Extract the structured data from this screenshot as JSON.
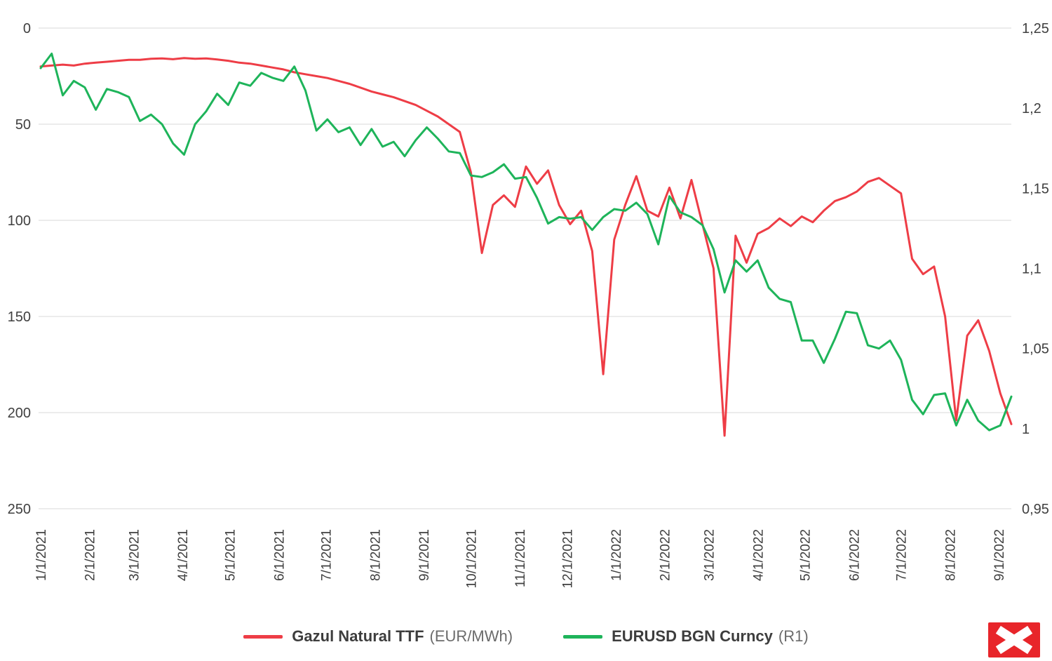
{
  "logo": {
    "color": "#e8252a",
    "icon": "x-mark"
  },
  "chart_data": {
    "type": "line",
    "title": "",
    "x_tick_labels": [
      "1/1/2021",
      "2/1/2021",
      "3/1/2021",
      "4/1/2021",
      "5/1/2021",
      "6/1/2021",
      "7/1/2021",
      "8/1/2021",
      "9/1/2021",
      "10/1/2021",
      "11/1/2021",
      "12/1/2021",
      "1/1/2022",
      "2/1/2022",
      "3/1/2022",
      "4/1/2022",
      "5/1/2022",
      "6/1/2022",
      "7/1/2022",
      "8/1/2022",
      "9/1/2022"
    ],
    "x_tick_days": [
      0,
      31,
      59,
      90,
      120,
      151,
      181,
      212,
      243,
      273,
      304,
      334,
      365,
      396,
      424,
      455,
      485,
      516,
      546,
      577,
      608
    ],
    "x_span_days": 616,
    "point_interval_days": 7,
    "left_axis": {
      "min": 0,
      "max": 250,
      "inverted": true,
      "ticks": [
        "0",
        "50",
        "100",
        "150",
        "200",
        "250"
      ],
      "values": [
        0,
        50,
        100,
        150,
        200,
        250
      ]
    },
    "right_axis": {
      "min": 0.95,
      "max": 1.25,
      "inverted": false,
      "ticks": [
        "1,25",
        "1,2",
        "1,15",
        "1,1",
        "1,05",
        "1",
        "0,95"
      ],
      "values": [
        1.25,
        1.2,
        1.15,
        1.1,
        1.05,
        1,
        0.95
      ]
    },
    "grid": {
      "color": "#d9d9d9",
      "horizontal": true,
      "vertical": false
    },
    "axis_text_color": "#3f3f3f",
    "background": "#ffffff",
    "series": [
      {
        "key": "gas-price",
        "name": "Gazul Natural TTF",
        "unit": "EUR/MWh",
        "axis": "left",
        "color": "#ee3d46",
        "values": [
          20,
          19.5,
          19,
          19.5,
          18.5,
          18,
          17.5,
          17,
          16.5,
          16.5,
          16,
          15.8,
          16.2,
          15.6,
          16,
          15.8,
          16.3,
          17,
          18,
          18.5,
          19.5,
          20.5,
          21.5,
          23,
          24,
          25,
          26,
          27.5,
          29,
          31,
          33,
          34.5,
          36,
          38,
          40,
          43,
          46,
          50,
          54,
          75,
          117,
          92,
          87,
          93,
          72,
          81,
          74,
          92,
          102,
          95,
          116,
          180,
          110,
          92,
          77,
          95,
          98,
          83,
          99,
          79,
          102,
          125,
          212,
          108,
          122,
          107,
          104,
          99,
          103,
          98,
          101,
          95,
          90,
          88,
          85,
          80,
          78,
          82,
          86,
          120,
          128,
          124,
          150,
          204,
          160,
          152,
          168,
          190,
          206
        ]
      },
      {
        "key": "eurusd",
        "name": "EURUSD BGN Curncy",
        "unit": "R1",
        "axis": "right",
        "color": "#1eb45a",
        "values": [
          1.225,
          1.234,
          1.208,
          1.217,
          1.213,
          1.199,
          1.212,
          1.21,
          1.207,
          1.192,
          1.196,
          1.19,
          1.178,
          1.171,
          1.19,
          1.198,
          1.209,
          1.202,
          1.216,
          1.214,
          1.222,
          1.219,
          1.217,
          1.226,
          1.211,
          1.186,
          1.193,
          1.185,
          1.188,
          1.177,
          1.187,
          1.176,
          1.179,
          1.17,
          1.18,
          1.188,
          1.181,
          1.173,
          1.172,
          1.158,
          1.157,
          1.16,
          1.165,
          1.156,
          1.157,
          1.144,
          1.128,
          1.132,
          1.131,
          1.132,
          1.124,
          1.132,
          1.137,
          1.136,
          1.141,
          1.134,
          1.115,
          1.145,
          1.135,
          1.132,
          1.127,
          1.112,
          1.085,
          1.105,
          1.098,
          1.105,
          1.088,
          1.081,
          1.079,
          1.055,
          1.055,
          1.041,
          1.056,
          1.073,
          1.072,
          1.052,
          1.05,
          1.055,
          1.043,
          1.018,
          1.009,
          1.021,
          1.022,
          1.002,
          1.018,
          1.005,
          0.999,
          1.002,
          1.02
        ]
      }
    ],
    "legend": [
      {
        "label": "Gazul Natural TTF",
        "suffix": "(EUR/MWh)"
      },
      {
        "label": "EURUSD BGN Curncy",
        "suffix": "(R1)"
      }
    ]
  }
}
